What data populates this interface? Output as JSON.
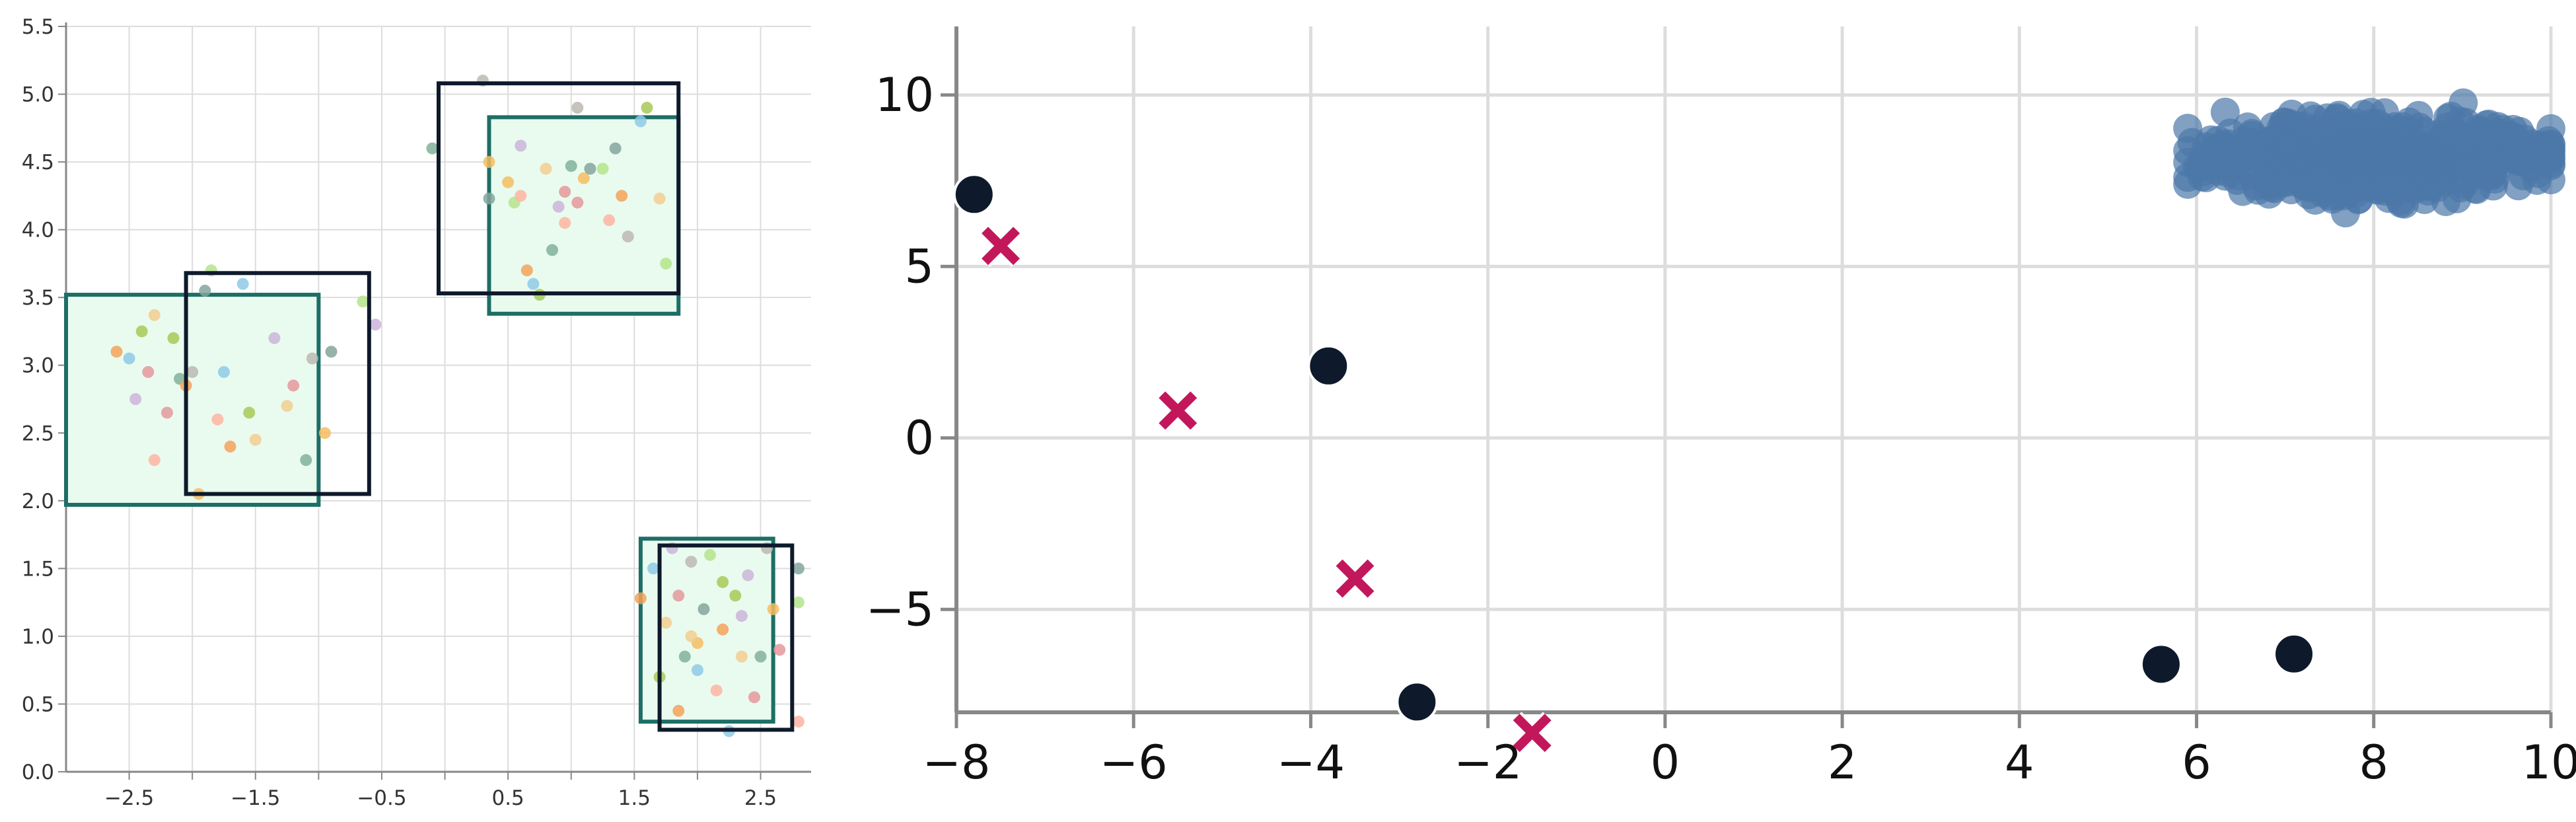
{
  "chart_data": [
    {
      "type": "scatter",
      "title": "",
      "xlabel": "",
      "ylabel": "",
      "xlim": [
        -3.0,
        2.9
      ],
      "ylim": [
        0.0,
        5.5
      ],
      "grid": true,
      "x_ticks": [
        "−2.5",
        "−2.0",
        "−1.5",
        "−1.0",
        "−0.5",
        "0.0",
        "0.5",
        "1.0",
        "1.5",
        "2.0",
        "2.5"
      ],
      "x_tick_values": [
        -2.5,
        -2.0,
        -1.5,
        -1.0,
        -0.5,
        0.0,
        0.5,
        1.0,
        1.5,
        2.0,
        2.5
      ],
      "x_tick_label_every": 2,
      "y_ticks": [
        "0.0",
        "0.5",
        "1.0",
        "1.5",
        "2.0",
        "2.5",
        "3.0",
        "3.5",
        "4.0",
        "4.5",
        "5.0",
        "5.5"
      ],
      "y_tick_values": [
        0.0,
        0.5,
        1.0,
        1.5,
        2.0,
        2.5,
        3.0,
        3.5,
        4.0,
        4.5,
        5.0,
        5.5
      ],
      "colors": {
        "outline_box": "#0e1a2b",
        "fill_box_stroke": "#1d6e66",
        "fill_box_fill": "#e9fbef",
        "points": [
          "#f4a259",
          "#8ecae6",
          "#a7c957",
          "#f2cc8f",
          "#cdb4db",
          "#e5989b",
          "#81b29a",
          "#bcb8b1",
          "#f6bd60",
          "#84a59d",
          "#b5e48c",
          "#ffb4a2"
        ]
      },
      "outline_boxes": [
        {
          "x0": -2.05,
          "x1": -0.6,
          "y0": 2.05,
          "y1": 3.68
        },
        {
          "x0": -0.05,
          "x1": 1.85,
          "y0": 3.53,
          "y1": 5.08
        },
        {
          "x0": 1.7,
          "x1": 2.75,
          "y0": 0.31,
          "y1": 1.67
        }
      ],
      "filled_boxes": [
        {
          "x0": -3.0,
          "x1": -1.0,
          "y0": 1.97,
          "y1": 3.52
        },
        {
          "x0": 0.35,
          "x1": 1.85,
          "y0": 3.38,
          "y1": 4.83
        },
        {
          "x0": 1.55,
          "x1": 2.6,
          "y0": 0.37,
          "y1": 1.72
        }
      ],
      "points": [
        {
          "x": -2.6,
          "y": 3.1
        },
        {
          "x": -2.5,
          "y": 3.05
        },
        {
          "x": -2.4,
          "y": 3.25
        },
        {
          "x": -2.3,
          "y": 3.37
        },
        {
          "x": -2.45,
          "y": 2.75
        },
        {
          "x": -2.2,
          "y": 2.65
        },
        {
          "x": -2.1,
          "y": 2.9
        },
        {
          "x": -2.0,
          "y": 2.95
        },
        {
          "x": -1.95,
          "y": 2.05
        },
        {
          "x": -1.9,
          "y": 3.55
        },
        {
          "x": -1.85,
          "y": 3.7
        },
        {
          "x": -1.8,
          "y": 2.6
        },
        {
          "x": -1.7,
          "y": 2.4
        },
        {
          "x": -1.6,
          "y": 3.6
        },
        {
          "x": -1.55,
          "y": 2.65
        },
        {
          "x": -1.5,
          "y": 2.45
        },
        {
          "x": -1.35,
          "y": 3.2
        },
        {
          "x": -1.2,
          "y": 2.85
        },
        {
          "x": -1.1,
          "y": 2.3
        },
        {
          "x": -1.05,
          "y": 3.05
        },
        {
          "x": -0.95,
          "y": 2.5
        },
        {
          "x": -0.9,
          "y": 3.1
        },
        {
          "x": -0.65,
          "y": 3.47
        },
        {
          "x": -2.3,
          "y": 2.3
        },
        {
          "x": -2.05,
          "y": 2.85
        },
        {
          "x": -1.75,
          "y": 2.95
        },
        {
          "x": -2.15,
          "y": 3.2
        },
        {
          "x": -1.25,
          "y": 2.7
        },
        {
          "x": -0.55,
          "y": 3.3
        },
        {
          "x": -2.35,
          "y": 2.95
        },
        {
          "x": -0.1,
          "y": 4.6
        },
        {
          "x": 0.3,
          "y": 5.1
        },
        {
          "x": 0.35,
          "y": 4.5
        },
        {
          "x": 0.35,
          "y": 4.23
        },
        {
          "x": 0.55,
          "y": 4.2
        },
        {
          "x": 0.6,
          "y": 4.25
        },
        {
          "x": 0.65,
          "y": 3.7
        },
        {
          "x": 0.7,
          "y": 3.6
        },
        {
          "x": 0.75,
          "y": 3.52
        },
        {
          "x": 0.8,
          "y": 4.45
        },
        {
          "x": 0.9,
          "y": 4.17
        },
        {
          "x": 0.95,
          "y": 4.28
        },
        {
          "x": 1.0,
          "y": 4.47
        },
        {
          "x": 1.05,
          "y": 4.9
        },
        {
          "x": 1.1,
          "y": 4.38
        },
        {
          "x": 1.15,
          "y": 4.45
        },
        {
          "x": 1.25,
          "y": 4.45
        },
        {
          "x": 1.3,
          "y": 4.07
        },
        {
          "x": 1.4,
          "y": 4.25
        },
        {
          "x": 1.55,
          "y": 4.8
        },
        {
          "x": 1.6,
          "y": 4.9
        },
        {
          "x": 1.7,
          "y": 4.23
        },
        {
          "x": 0.6,
          "y": 4.62
        },
        {
          "x": 1.05,
          "y": 4.2
        },
        {
          "x": 0.85,
          "y": 3.85
        },
        {
          "x": 1.45,
          "y": 3.95
        },
        {
          "x": 0.5,
          "y": 4.35
        },
        {
          "x": 1.35,
          "y": 4.6
        },
        {
          "x": 1.75,
          "y": 3.75
        },
        {
          "x": 0.95,
          "y": 4.05
        },
        {
          "x": 1.55,
          "y": 1.28
        },
        {
          "x": 1.65,
          "y": 1.5
        },
        {
          "x": 1.7,
          "y": 0.7
        },
        {
          "x": 1.75,
          "y": 1.1
        },
        {
          "x": 1.8,
          "y": 1.65
        },
        {
          "x": 1.85,
          "y": 1.3
        },
        {
          "x": 1.9,
          "y": 0.85
        },
        {
          "x": 1.95,
          "y": 1.55
        },
        {
          "x": 2.0,
          "y": 0.95
        },
        {
          "x": 2.05,
          "y": 1.2
        },
        {
          "x": 2.1,
          "y": 1.6
        },
        {
          "x": 2.15,
          "y": 0.6
        },
        {
          "x": 2.2,
          "y": 1.05
        },
        {
          "x": 2.25,
          "y": 0.3
        },
        {
          "x": 2.3,
          "y": 1.3
        },
        {
          "x": 2.35,
          "y": 0.85
        },
        {
          "x": 2.4,
          "y": 1.45
        },
        {
          "x": 2.45,
          "y": 0.55
        },
        {
          "x": 2.5,
          "y": 0.85
        },
        {
          "x": 2.55,
          "y": 1.65
        },
        {
          "x": 2.6,
          "y": 1.2
        },
        {
          "x": 2.8,
          "y": 1.5
        },
        {
          "x": 2.8,
          "y": 1.25
        },
        {
          "x": 2.8,
          "y": 0.37
        },
        {
          "x": 1.85,
          "y": 0.45
        },
        {
          "x": 2.0,
          "y": 0.75
        },
        {
          "x": 2.2,
          "y": 1.4
        },
        {
          "x": 1.95,
          "y": 1.0
        },
        {
          "x": 2.35,
          "y": 1.15
        },
        {
          "x": 2.65,
          "y": 0.9
        }
      ]
    },
    {
      "type": "scatter",
      "title": "",
      "xlabel": "",
      "ylabel": "",
      "xlim": [
        -8.0,
        10.0
      ],
      "ylim": [
        -8.0,
        12.0
      ],
      "grid": true,
      "x_ticks": [
        "−8",
        "−6",
        "−4",
        "−2",
        "0",
        "2",
        "4",
        "6",
        "8",
        "10"
      ],
      "x_tick_values": [
        -8,
        -6,
        -4,
        -2,
        0,
        2,
        4,
        6,
        8,
        10
      ],
      "y_ticks": [
        "−5",
        "0",
        "5",
        "10"
      ],
      "y_tick_values": [
        -5,
        0,
        5,
        10
      ],
      "colors": {
        "cloud": "#4c78a8",
        "dark_points": "#0e1a2b",
        "crosses": "#c2185b"
      },
      "cloud": {
        "x_range": [
          5.9,
          10.0
        ],
        "y_range": [
          6.0,
          10.6
        ],
        "center": [
          8.0,
          8.2
        ],
        "count": 600
      },
      "dark_points": [
        {
          "x": -7.8,
          "y": 7.1
        },
        {
          "x": -3.8,
          "y": 2.1
        },
        {
          "x": -2.8,
          "y": -7.7
        },
        {
          "x": 5.6,
          "y": -6.6
        },
        {
          "x": 7.1,
          "y": -6.3
        }
      ],
      "crosses": [
        {
          "x": -7.5,
          "y": 5.6
        },
        {
          "x": -5.5,
          "y": 0.8
        },
        {
          "x": -3.5,
          "y": -4.1
        },
        {
          "x": -1.5,
          "y": -8.6
        }
      ]
    }
  ]
}
